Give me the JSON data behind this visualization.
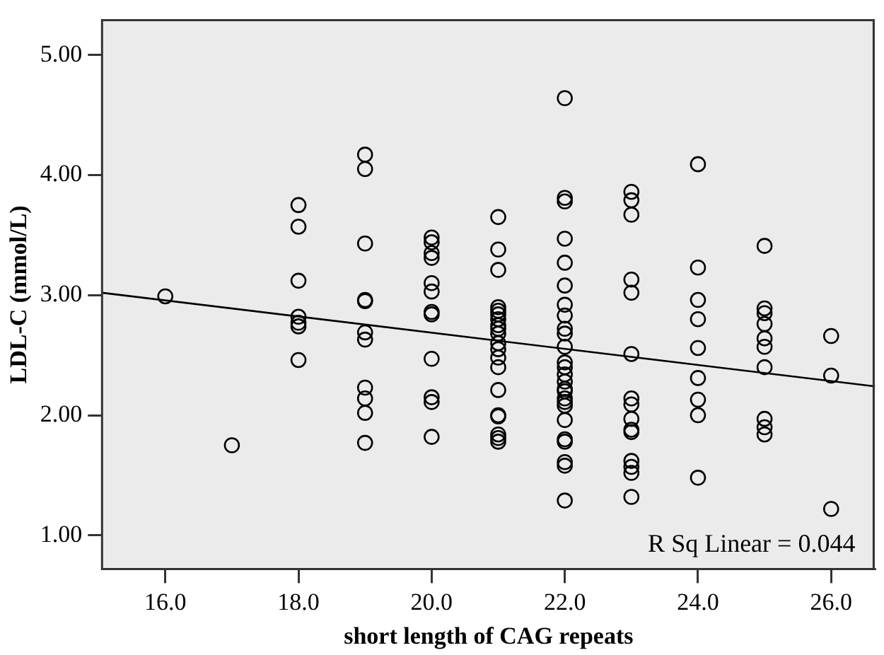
{
  "chart_data": {
    "type": "scatter",
    "xlabel": "short length of CAG repeats",
    "ylabel": "LDL-C (mmol/L)",
    "xlim": [
      15.05,
      26.66
    ],
    "ylim": [
      0.72,
      5.29
    ],
    "xticks": [
      {
        "value": 16,
        "label": "16.0"
      },
      {
        "value": 18,
        "label": "18.0"
      },
      {
        "value": 20,
        "label": "20.0"
      },
      {
        "value": 22,
        "label": "22.0"
      },
      {
        "value": 24,
        "label": "24.0"
      },
      {
        "value": 26,
        "label": "26.0"
      }
    ],
    "yticks": [
      {
        "value": 1,
        "label": "1.00"
      },
      {
        "value": 2,
        "label": "2.00"
      },
      {
        "value": 3,
        "label": "3.00"
      },
      {
        "value": 4,
        "label": "4.00"
      },
      {
        "value": 5,
        "label": "5.00"
      }
    ],
    "grid": false,
    "legend": false,
    "marker": "circle",
    "annotations": [
      "R Sq Linear = 0.044"
    ],
    "series": [
      {
        "color": "#000000",
        "x": [
          16,
          17,
          18,
          18,
          18,
          18,
          18,
          18,
          18,
          19,
          19,
          19,
          19,
          19,
          19,
          19,
          19,
          19,
          19,
          19,
          20,
          20,
          20,
          20,
          20,
          20,
          20,
          20,
          20,
          20,
          20,
          20,
          21,
          21,
          21,
          21,
          21,
          21,
          21,
          21,
          21,
          21,
          21,
          21,
          21,
          21,
          21,
          21,
          21,
          21,
          21,
          21,
          22,
          22,
          22,
          22,
          22,
          22,
          22,
          22,
          22,
          22,
          22,
          22,
          22,
          22,
          22,
          22,
          22,
          22,
          22,
          22,
          22,
          22,
          22,
          22,
          22,
          22,
          23,
          23,
          23,
          23,
          23,
          23,
          23,
          23,
          23,
          23,
          23,
          23,
          23,
          23,
          23,
          24,
          24,
          24,
          24,
          24,
          24,
          24,
          24,
          24,
          25,
          25,
          25,
          25,
          25,
          25,
          25,
          25,
          25,
          25,
          26,
          26,
          26
        ],
        "values": [
          2.99,
          1.75,
          3.75,
          3.57,
          3.12,
          2.82,
          2.77,
          2.74,
          2.46,
          4.17,
          4.05,
          3.43,
          2.96,
          2.95,
          2.69,
          2.63,
          2.23,
          2.14,
          2.02,
          1.77,
          3.48,
          3.44,
          3.35,
          3.31,
          3.1,
          3.03,
          2.86,
          2.84,
          2.47,
          2.15,
          2.11,
          1.82,
          3.65,
          3.38,
          3.21,
          2.9,
          2.87,
          2.84,
          2.8,
          2.75,
          2.72,
          2.68,
          2.6,
          2.55,
          2.48,
          2.4,
          2.21,
          2.0,
          1.99,
          1.84,
          1.81,
          1.78,
          4.64,
          3.81,
          3.78,
          3.47,
          3.27,
          3.08,
          2.92,
          2.83,
          2.72,
          2.68,
          2.57,
          2.44,
          2.4,
          2.34,
          2.28,
          2.22,
          2.2,
          2.14,
          2.11,
          2.08,
          1.96,
          1.8,
          1.78,
          1.61,
          1.58,
          1.29,
          3.86,
          3.79,
          3.67,
          3.13,
          3.02,
          2.51,
          2.14,
          2.09,
          1.97,
          1.88,
          1.86,
          1.62,
          1.57,
          1.52,
          1.32,
          4.09,
          3.23,
          2.96,
          2.8,
          2.56,
          2.31,
          2.13,
          2.0,
          1.48,
          3.41,
          2.89,
          2.85,
          2.76,
          2.64,
          2.57,
          2.4,
          1.97,
          1.9,
          1.84,
          2.66,
          2.33,
          1.22
        ]
      },
      {
        "type": "line",
        "color": "#000000",
        "marker": "none",
        "x": [
          15.05,
          26.66
        ],
        "values": [
          3.02,
          2.24
        ]
      }
    ]
  }
}
